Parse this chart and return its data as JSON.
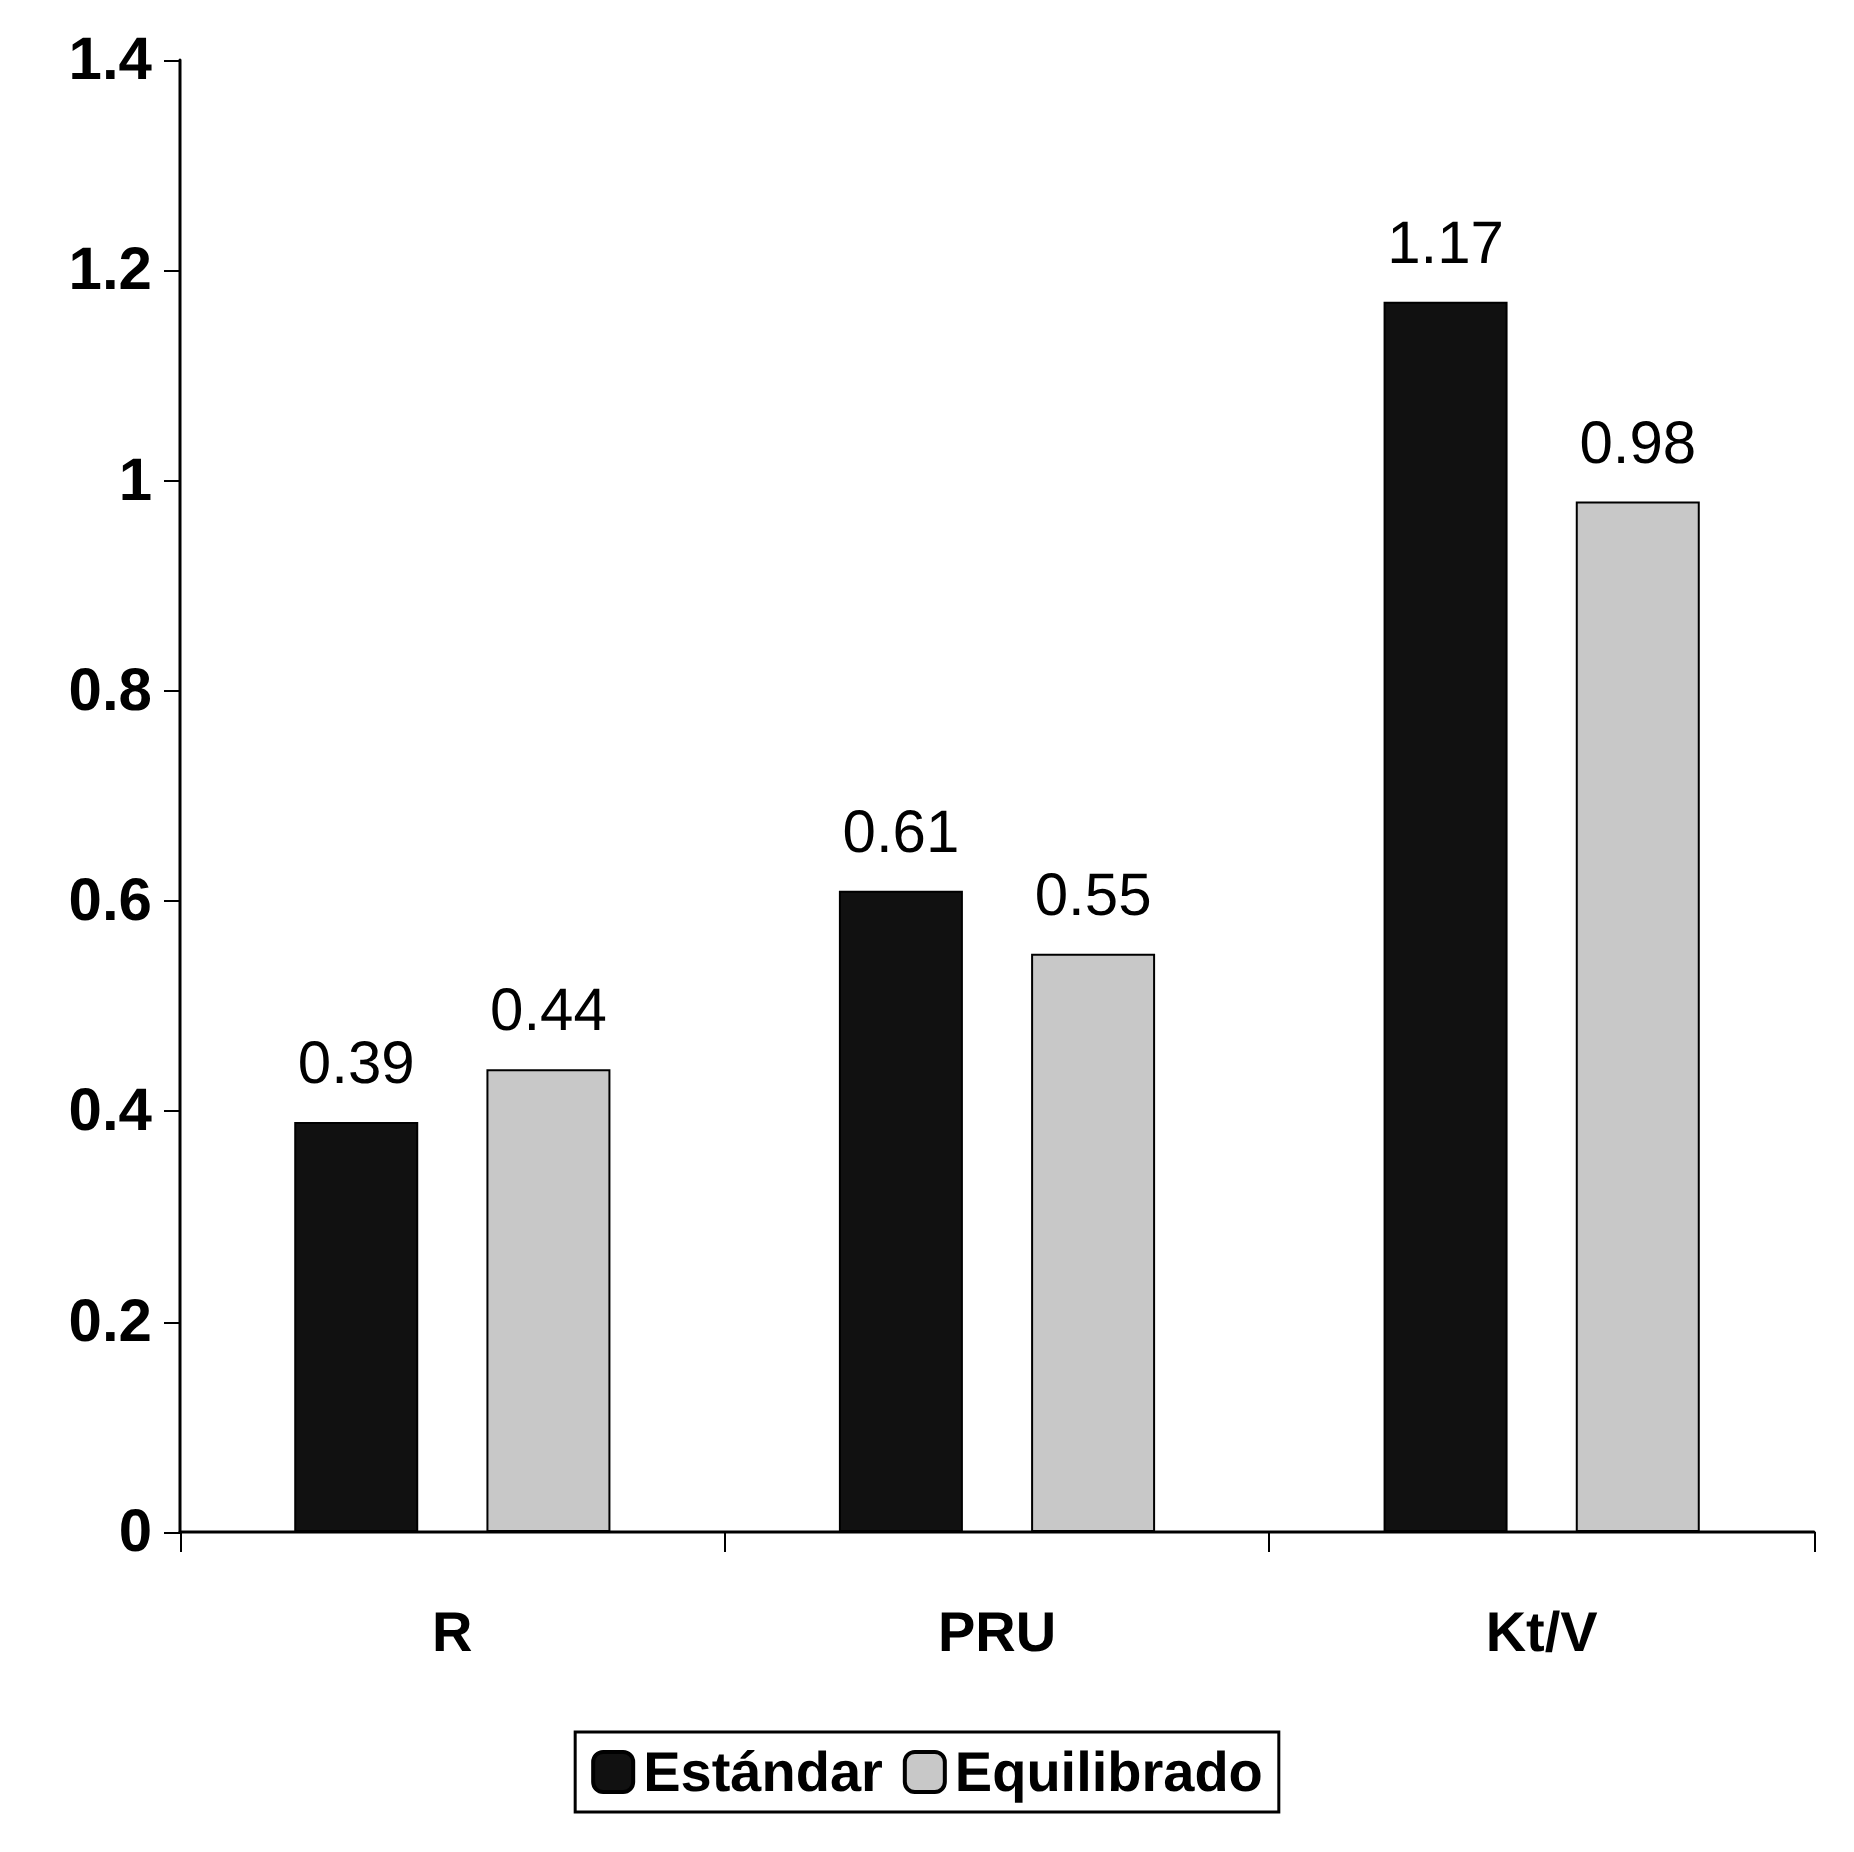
{
  "chart_data": {
    "type": "bar",
    "categories": [
      "R",
      "PRU",
      "Kt/V"
    ],
    "series": [
      {
        "name": "Estándar",
        "color": "#111111",
        "values": [
          0.39,
          0.61,
          1.17
        ]
      },
      {
        "name": "Equilibrado",
        "color": "#c8c8c8",
        "values": [
          0.44,
          0.55,
          0.98
        ]
      }
    ],
    "ylim": [
      0,
      1.4
    ],
    "yticks": [
      0,
      0.2,
      0.4,
      0.6,
      0.8,
      1,
      1.2,
      1.4
    ],
    "grid": false,
    "legend": "bottom",
    "data_labels": true
  }
}
